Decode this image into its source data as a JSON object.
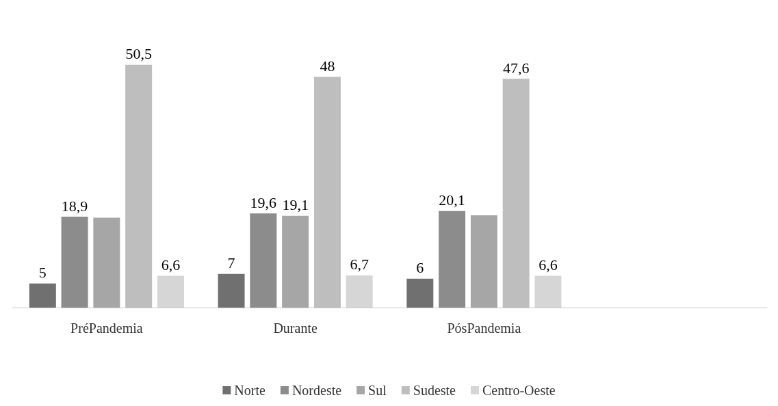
{
  "chart_data": {
    "type": "bar",
    "categories": [
      "PréPandemia",
      "Durante",
      "PósPandemia",
      null
    ],
    "legend": "bottom",
    "series": [
      {
        "name": "Norte",
        "color": "#707070",
        "values": [
          5,
          7,
          6,
          null
        ],
        "value_labels": [
          "5",
          "7",
          "6",
          null
        ]
      },
      {
        "name": "Nordeste",
        "color": "#8c8c8c",
        "values": [
          18.9,
          19.6,
          20.1,
          null
        ],
        "value_labels": [
          "18,9",
          "19,6",
          "20,1",
          null
        ]
      },
      {
        "name": "Sul",
        "color": "#a6a6a6",
        "values": [
          18.7,
          19.1,
          19.2,
          null
        ],
        "value_labels": [
          null,
          "19,1",
          null,
          null
        ]
      },
      {
        "name": "Sudeste",
        "color": "#bebebe",
        "values": [
          50.5,
          48,
          47.6,
          null
        ],
        "value_labels": [
          "50,5",
          "48",
          "47,6",
          null
        ]
      },
      {
        "name": "Centro-Oeste",
        "color": "#d6d6d6",
        "values": [
          6.6,
          6.7,
          6.6,
          null
        ],
        "value_labels": [
          "6,6",
          "6,7",
          "6,6",
          null
        ]
      }
    ]
  }
}
